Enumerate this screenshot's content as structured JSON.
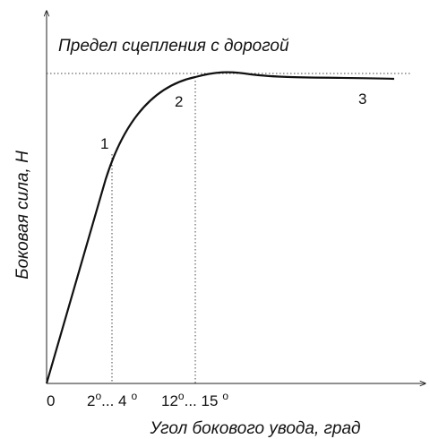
{
  "title": "Предел сцепления с дорогой",
  "y_axis_label": "Боковая сила, Н",
  "x_axis_label": "Угол бокового увода, град",
  "curve_labels": [
    "1",
    "2",
    "3"
  ],
  "x_labels": [
    {
      "parts": [
        "0"
      ]
    },
    {
      "parts": [
        "2",
        "o",
        "... 4",
        "o"
      ]
    },
    {
      "parts": [
        "12",
        "o",
        "... 15",
        "o"
      ]
    }
  ]
}
